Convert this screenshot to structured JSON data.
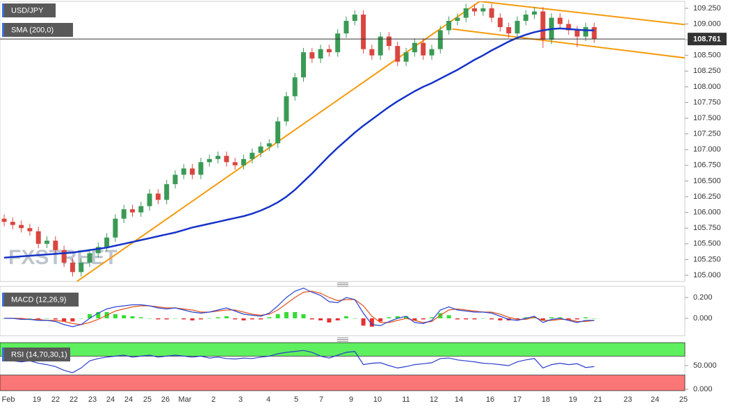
{
  "chart_data": [
    {
      "type": "candlestick",
      "title": "USD/JPY",
      "watermark": "FXSTREET",
      "up_color": "#3a9a55",
      "down_color": "#d9463f",
      "open": [
        105.9,
        105.85,
        105.8,
        105.75,
        105.7,
        105.5,
        105.55,
        105.4,
        105.2,
        105.05,
        105.2,
        105.35,
        105.45,
        105.6,
        105.9,
        106.05,
        106.0,
        106.1,
        106.3,
        106.2,
        106.45,
        106.6,
        106.7,
        106.6,
        106.8,
        106.85,
        106.9,
        106.8,
        106.75,
        106.85,
        106.95,
        107.05,
        107.1,
        107.45,
        107.85,
        108.15,
        108.55,
        108.45,
        108.6,
        108.55,
        108.85,
        109.05,
        109.15,
        108.6,
        108.5,
        108.8,
        108.65,
        108.4,
        108.55,
        108.7,
        108.5,
        108.6,
        108.9,
        109.05,
        109.1,
        109.25,
        109.2,
        109.25,
        109.1,
        108.95,
        108.85,
        109.05,
        109.15,
        109.2,
        108.75,
        109.1,
        109.0,
        108.9,
        108.8,
        108.95
      ],
      "high": [
        105.97,
        105.92,
        105.87,
        105.82,
        105.77,
        105.62,
        105.62,
        105.47,
        105.27,
        105.27,
        105.42,
        105.52,
        105.67,
        105.97,
        106.12,
        106.12,
        106.17,
        106.37,
        106.37,
        106.52,
        106.67,
        106.77,
        106.77,
        106.87,
        106.92,
        106.97,
        106.97,
        106.87,
        106.92,
        107.02,
        107.12,
        107.17,
        107.52,
        107.92,
        108.22,
        108.62,
        108.62,
        108.67,
        108.67,
        108.92,
        109.12,
        109.22,
        109.22,
        108.67,
        108.87,
        108.87,
        108.72,
        108.62,
        108.77,
        108.77,
        108.67,
        108.97,
        109.12,
        109.17,
        109.32,
        109.32,
        109.32,
        109.32,
        109.17,
        109.02,
        109.12,
        109.22,
        109.27,
        109.27,
        109.17,
        109.17,
        109.07,
        108.97,
        109.02,
        109.02
      ],
      "low": [
        105.78,
        105.73,
        105.68,
        105.63,
        105.43,
        105.43,
        105.33,
        105.13,
        104.98,
        104.98,
        105.13,
        105.28,
        105.38,
        105.53,
        105.83,
        105.93,
        105.93,
        106.03,
        106.13,
        106.13,
        106.38,
        106.53,
        106.53,
        106.53,
        106.73,
        106.78,
        106.73,
        106.68,
        106.68,
        106.78,
        106.88,
        106.98,
        107.03,
        107.38,
        107.78,
        108.08,
        108.38,
        108.38,
        108.48,
        108.48,
        108.78,
        108.98,
        108.53,
        108.43,
        108.43,
        108.58,
        108.33,
        108.33,
        108.48,
        108.43,
        108.43,
        108.53,
        108.83,
        108.98,
        109.03,
        109.13,
        109.13,
        109.03,
        108.88,
        108.78,
        108.78,
        108.98,
        109.08,
        108.62,
        108.68,
        108.93,
        108.83,
        108.63,
        108.73,
        108.7
      ],
      "close": [
        105.85,
        105.8,
        105.75,
        105.7,
        105.5,
        105.55,
        105.4,
        105.2,
        105.05,
        105.2,
        105.35,
        105.45,
        105.6,
        105.9,
        106.05,
        106.0,
        106.1,
        106.3,
        106.2,
        106.45,
        106.6,
        106.7,
        106.6,
        106.8,
        106.85,
        106.9,
        106.8,
        106.75,
        106.85,
        106.95,
        107.05,
        107.1,
        107.45,
        107.85,
        108.15,
        108.55,
        108.45,
        108.6,
        108.55,
        108.85,
        109.05,
        109.15,
        108.6,
        108.5,
        108.8,
        108.65,
        108.4,
        108.55,
        108.7,
        108.5,
        108.6,
        108.9,
        109.05,
        109.1,
        109.25,
        109.2,
        109.25,
        109.1,
        108.95,
        108.85,
        109.05,
        109.15,
        109.2,
        108.75,
        109.1,
        109.0,
        108.9,
        108.8,
        108.95,
        108.761
      ],
      "sma": {
        "name": "SMA (200,0)",
        "color": "#1533c8",
        "values": [
          105.28,
          105.29,
          105.3,
          105.31,
          105.32,
          105.33,
          105.34,
          105.35,
          105.36,
          105.38,
          105.4,
          105.42,
          105.44,
          105.47,
          105.5,
          105.53,
          105.56,
          105.59,
          105.62,
          105.65,
          105.68,
          105.72,
          105.76,
          105.79,
          105.82,
          105.85,
          105.88,
          105.91,
          105.94,
          105.98,
          106.03,
          106.09,
          106.16,
          106.25,
          106.36,
          106.49,
          106.62,
          106.76,
          106.9,
          107.03,
          107.15,
          107.27,
          107.38,
          107.48,
          107.58,
          107.68,
          107.77,
          107.85,
          107.93,
          108.0,
          108.06,
          108.13,
          108.2,
          108.27,
          108.35,
          108.43,
          108.5,
          108.58,
          108.65,
          108.72,
          108.78,
          108.83,
          108.87,
          108.9,
          108.92,
          108.93,
          108.92,
          108.91,
          108.9,
          108.9
        ]
      },
      "trendline_color": "#f59a0c",
      "trendlines": [
        {
          "x": [
            8.5,
            55.6
          ],
          "y": [
            104.9,
            109.36
          ]
        },
        {
          "x": [
            52.4,
            79.6
          ],
          "y": [
            108.92,
            108.46
          ]
        },
        {
          "x": [
            55.6,
            79.6
          ],
          "y": [
            109.36,
            108.99
          ]
        }
      ],
      "ylim": [
        104.9,
        109.36
      ],
      "yticks": [
        {
          "value": 109.25,
          "label": "109.250"
        },
        {
          "value": 109.0,
          "label": "109.000"
        },
        {
          "value": 108.75,
          "label": "108.750"
        },
        {
          "value": 108.5,
          "label": "108.500"
        },
        {
          "value": 108.25,
          "label": "108.250"
        },
        {
          "value": 108.0,
          "label": "108.000"
        },
        {
          "value": 107.75,
          "label": "107.750"
        },
        {
          "value": 107.5,
          "label": "107.500"
        },
        {
          "value": 107.25,
          "label": "107.250"
        },
        {
          "value": 107.0,
          "label": "107.000"
        },
        {
          "value": 106.75,
          "label": "106.750"
        },
        {
          "value": 106.5,
          "label": "106.500"
        },
        {
          "value": 106.25,
          "label": "106.250"
        },
        {
          "value": 106.0,
          "label": "106.000"
        },
        {
          "value": 105.75,
          "label": "105.750"
        },
        {
          "value": 105.5,
          "label": "105.500"
        },
        {
          "value": 105.25,
          "label": "105.250"
        },
        {
          "value": 105.0,
          "label": "105.000"
        }
      ],
      "x_labels": [
        "Feb",
        "19",
        "22",
        "22",
        "23",
        "24",
        "24",
        "25",
        "26",
        "Mar",
        "2",
        "3",
        "4",
        "5",
        "7",
        "9",
        "10",
        "11",
        "12",
        "14",
        "16",
        "17",
        "18",
        "19",
        "21",
        "23",
        "24",
        "25"
      ]
    },
    {
      "type": "macd",
      "title": "MACD (12,26,9)",
      "macd_color": "#2a44d0",
      "signal_color": "#e0541e",
      "pos_color": "#33dd33",
      "neg_color": "#e63030",
      "macd": [
        0.0,
        0.0,
        -0.01,
        -0.01,
        -0.02,
        -0.02,
        -0.03,
        -0.06,
        -0.08,
        -0.06,
        0.0,
        0.05,
        0.09,
        0.11,
        0.12,
        0.13,
        0.13,
        0.12,
        0.1,
        0.09,
        0.1,
        0.08,
        0.06,
        0.05,
        0.06,
        0.08,
        0.1,
        0.07,
        0.04,
        0.03,
        0.02,
        0.05,
        0.12,
        0.2,
        0.26,
        0.29,
        0.25,
        0.22,
        0.16,
        0.15,
        0.2,
        0.18,
        0.05,
        -0.06,
        -0.07,
        -0.03,
        0.0,
        0.02,
        -0.04,
        -0.05,
        -0.02,
        0.08,
        0.11,
        0.08,
        0.07,
        0.06,
        0.06,
        0.05,
        0.02,
        -0.01,
        -0.02,
        0.0,
        0.02,
        -0.04,
        -0.01,
        0.0,
        -0.02,
        -0.04,
        -0.02,
        -0.02
      ],
      "signal": [
        0.0,
        0.0,
        0.0,
        -0.01,
        -0.01,
        -0.02,
        -0.02,
        -0.03,
        -0.05,
        -0.06,
        -0.04,
        -0.01,
        0.03,
        0.07,
        0.09,
        0.11,
        0.12,
        0.12,
        0.11,
        0.1,
        0.1,
        0.09,
        0.08,
        0.06,
        0.06,
        0.07,
        0.08,
        0.08,
        0.06,
        0.04,
        0.03,
        0.04,
        0.08,
        0.14,
        0.2,
        0.25,
        0.26,
        0.24,
        0.2,
        0.17,
        0.18,
        0.18,
        0.12,
        0.02,
        -0.04,
        -0.04,
        -0.02,
        0.0,
        -0.02,
        -0.04,
        -0.03,
        0.03,
        0.08,
        0.09,
        0.08,
        0.07,
        0.06,
        0.06,
        0.04,
        0.01,
        -0.01,
        -0.01,
        0.01,
        -0.02,
        -0.02,
        -0.01,
        -0.01,
        -0.03,
        -0.03,
        -0.02
      ],
      "histogram": [
        0,
        0,
        -0.01,
        0,
        -0.01,
        0,
        -0.01,
        -0.03,
        -0.03,
        0,
        0.04,
        0.06,
        0.06,
        0.04,
        0.03,
        0.02,
        0.01,
        0,
        -0.01,
        -0.01,
        0,
        -0.01,
        -0.02,
        -0.01,
        0,
        0.01,
        0.02,
        -0.01,
        -0.02,
        -0.01,
        -0.01,
        0.01,
        0.04,
        0.06,
        0.06,
        0.04,
        -0.01,
        -0.02,
        -0.04,
        -0.02,
        0.02,
        0,
        -0.07,
        -0.08,
        -0.03,
        0.01,
        0.02,
        0.02,
        -0.02,
        -0.01,
        0.01,
        0.05,
        0.03,
        -0.01,
        -0.01,
        -0.01,
        0,
        -0.01,
        -0.02,
        -0.02,
        -0.01,
        0.01,
        0.01,
        -0.02,
        0.01,
        0.01,
        -0.01,
        -0.01,
        0.01,
        0
      ],
      "ylim": [
        -0.167,
        0.307
      ],
      "yticks": [
        {
          "value": 0.2,
          "label": "0.200"
        },
        {
          "value": 0,
          "label": "0.000"
        }
      ]
    },
    {
      "type": "rsi",
      "title": "RSI (14,70,30,1)",
      "color": "#2a3ccc",
      "overbought": 70,
      "oversold": 30,
      "overbought_color": "#5ef05e",
      "oversold_color": "#fb7676",
      "values": [
        62,
        60,
        58,
        60,
        55,
        52,
        48,
        40,
        35,
        45,
        60,
        65,
        68,
        70,
        72,
        68,
        70,
        72,
        68,
        70,
        72,
        70,
        68,
        70,
        66,
        68,
        65,
        64,
        66,
        65,
        68,
        70,
        75,
        78,
        80,
        82,
        78,
        70,
        66,
        72,
        78,
        80,
        52,
        55,
        56,
        50,
        45,
        48,
        52,
        54,
        56,
        65,
        66,
        62,
        60,
        58,
        55,
        54,
        52,
        50,
        58,
        62,
        65,
        45,
        52,
        55,
        52,
        54,
        46,
        48
      ],
      "ylim": [
        -2.9,
        98.5
      ],
      "yticks": [
        {
          "value": 50,
          "label": "50.000"
        },
        {
          "value": 0,
          "label": "0.000"
        }
      ]
    }
  ]
}
